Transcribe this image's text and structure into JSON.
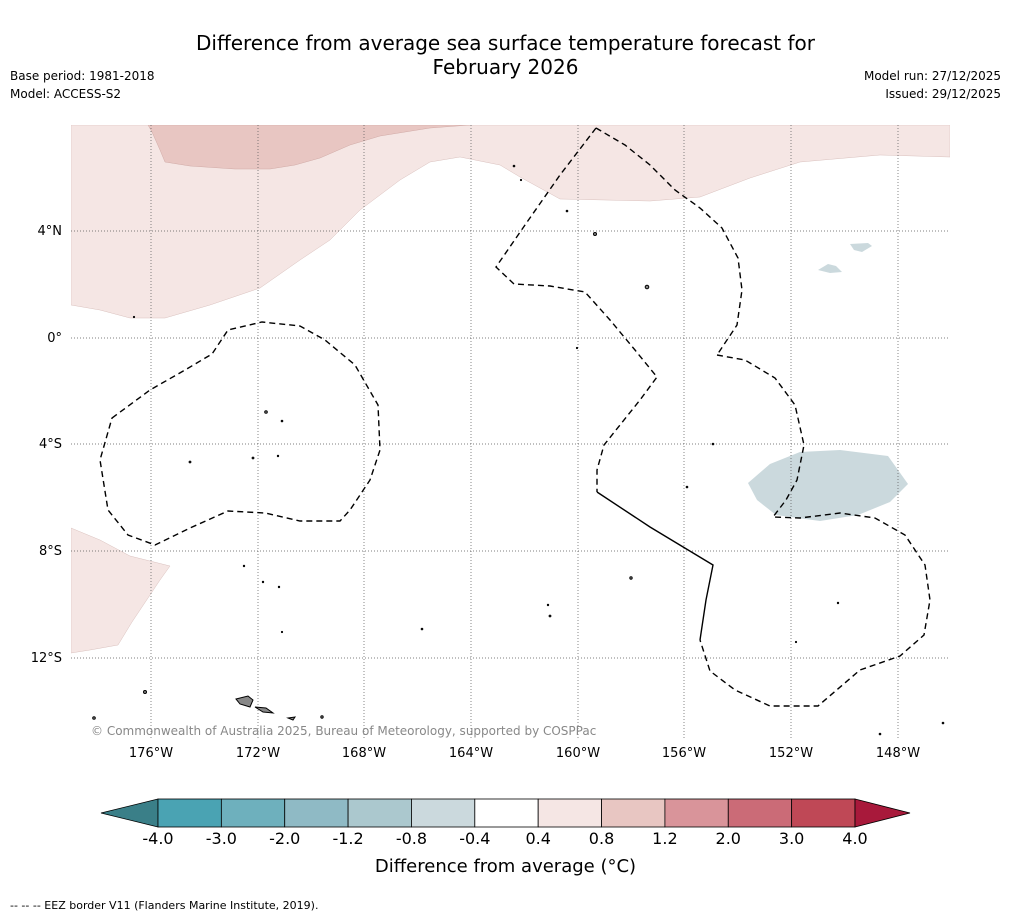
{
  "title_line1": "Difference from average sea surface temperature forecast for",
  "title_line2": "February 2026",
  "base_period": "Base period: 1981-2018",
  "model": "Model: ACCESS-S2",
  "model_run": "Model run: 27/12/2025",
  "issued": "Issued: 29/12/2025",
  "lat_labels": [
    "4°N",
    "0°",
    "4°S",
    "8°S",
    "12°S"
  ],
  "lon_labels": [
    "176°W",
    "172°W",
    "168°W",
    "164°W",
    "160°W",
    "156°W",
    "152°W",
    "148°W"
  ],
  "copyright": "© Commonwealth of Australia 2025, Bureau of Meteorology, supported by COSPPac",
  "colorbar": {
    "title": "Difference from average (°C)",
    "ticks": [
      "-4.0",
      "-3.0",
      "-2.0",
      "-1.2",
      "-0.8",
      "-0.4",
      "0.4",
      "0.8",
      "1.2",
      "2.0",
      "3.0",
      "4.0"
    ],
    "colors": [
      "#4aa3b3",
      "#6eb0bd",
      "#8fbac5",
      "#abc8ce",
      "#cbd9dd",
      "#ffffff",
      "#f5e6e4",
      "#e8c6c2",
      "#d9949a",
      "#cb6b77",
      "#bf4856"
    ],
    "under_color": "#3a7f88",
    "over_color": "#a8193b"
  },
  "footer": "-- --  -- EEZ border V11 (Flanders Marine Institute, 2019)."
}
